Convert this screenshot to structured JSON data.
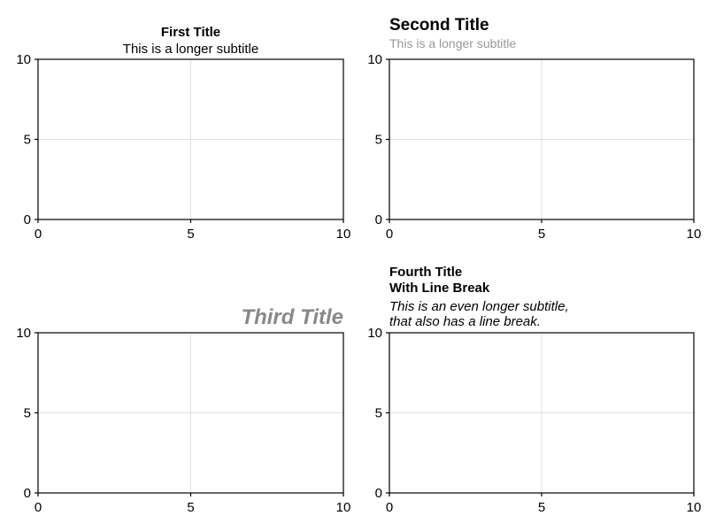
{
  "chart_data": [
    {
      "type": "line",
      "title": "First Title",
      "subtitle": "This is a longer subtitle",
      "xlim": [
        0,
        10
      ],
      "ylim": [
        0,
        10
      ],
      "xticks": [
        0,
        5,
        10
      ],
      "yticks": [
        0,
        5,
        10
      ],
      "grid": true,
      "series": []
    },
    {
      "type": "line",
      "title": "Second Title",
      "subtitle": "This is a longer subtitle",
      "xlim": [
        0,
        10
      ],
      "ylim": [
        0,
        10
      ],
      "xticks": [
        0,
        5,
        10
      ],
      "yticks": [
        0,
        5,
        10
      ],
      "grid": true,
      "series": []
    },
    {
      "type": "line",
      "title": "Third Title",
      "xlim": [
        0,
        10
      ],
      "ylim": [
        0,
        10
      ],
      "xticks": [
        0,
        5,
        10
      ],
      "yticks": [
        0,
        5,
        10
      ],
      "grid": true,
      "series": []
    },
    {
      "type": "line",
      "title_lines": [
        "Fourth Title",
        "With Line Break"
      ],
      "subtitle_lines": [
        "This is an even longer subtitle,",
        "that also has a line break."
      ],
      "xlim": [
        0,
        10
      ],
      "ylim": [
        0,
        10
      ],
      "xticks": [
        0,
        5,
        10
      ],
      "yticks": [
        0,
        5,
        10
      ],
      "grid": true,
      "series": []
    }
  ],
  "colors": {
    "axis": "#000000",
    "grid": "#e0e0e0",
    "muted_text": "#888888"
  }
}
